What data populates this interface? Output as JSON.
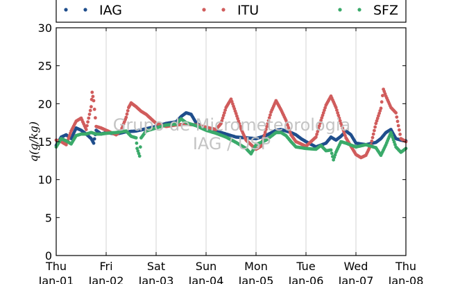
{
  "watermark": {
    "line1": "Grupo de Micrometeorologia",
    "line2": "IAG / USP"
  },
  "chart_data": {
    "type": "scatter",
    "ylabel": "q(g/kg)",
    "ylim": [
      0,
      30
    ],
    "yticks": [
      0,
      5,
      10,
      15,
      20,
      25,
      30
    ],
    "xlim": [
      0,
      7
    ],
    "x_unit": "days",
    "xticks": [
      {
        "x": 0,
        "day": "Thu",
        "date": "Jan-01"
      },
      {
        "x": 1,
        "day": "Fri",
        "date": "Jan-02"
      },
      {
        "x": 2,
        "day": "Sat",
        "date": "Jan-03"
      },
      {
        "x": 3,
        "day": "Sun",
        "date": "Jan-04"
      },
      {
        "x": 4,
        "day": "Mon",
        "date": "Jan-05"
      },
      {
        "x": 5,
        "day": "Tue",
        "date": "Jan-06"
      },
      {
        "x": 6,
        "day": "Wed",
        "date": "Jan-07"
      },
      {
        "x": 7,
        "day": "Thu",
        "date": "Jan-08"
      }
    ],
    "grid": "vertical",
    "legend_position": "top",
    "series": [
      {
        "name": "IAG",
        "color": "#1f4e8c",
        "points": [
          [
            0,
            14.5
          ],
          [
            0.1,
            15.6
          ],
          [
            0.2,
            15.9
          ],
          [
            0.3,
            15.4
          ],
          [
            0.4,
            16.8
          ],
          [
            0.5,
            16.5
          ],
          [
            0.6,
            16.0
          ],
          [
            0.7,
            15.4
          ],
          [
            0.75,
            14.8
          ],
          [
            0.8,
            16.5
          ],
          [
            0.9,
            16.0
          ],
          [
            1.0,
            16.2
          ],
          [
            1.2,
            16.0
          ],
          [
            1.4,
            16.3
          ],
          [
            1.6,
            16.4
          ],
          [
            1.8,
            16.7
          ],
          [
            2.0,
            17.0
          ],
          [
            2.2,
            17.4
          ],
          [
            2.4,
            17.6
          ],
          [
            2.5,
            18.3
          ],
          [
            2.6,
            18.8
          ],
          [
            2.7,
            18.6
          ],
          [
            2.8,
            17.5
          ],
          [
            2.9,
            17.0
          ],
          [
            3.0,
            16.6
          ],
          [
            3.2,
            16.4
          ],
          [
            3.4,
            16.0
          ],
          [
            3.6,
            15.6
          ],
          [
            3.8,
            15.5
          ],
          [
            4.0,
            15.4
          ],
          [
            4.2,
            15.8
          ],
          [
            4.4,
            16.5
          ],
          [
            4.5,
            16.6
          ],
          [
            4.6,
            16.4
          ],
          [
            4.7,
            16.2
          ],
          [
            4.8,
            15.9
          ],
          [
            4.9,
            15.4
          ],
          [
            5.0,
            15.0
          ],
          [
            5.2,
            14.3
          ],
          [
            5.4,
            14.8
          ],
          [
            5.5,
            15.6
          ],
          [
            5.6,
            15.2
          ],
          [
            5.7,
            15.7
          ],
          [
            5.8,
            16.4
          ],
          [
            5.9,
            15.9
          ],
          [
            6.0,
            14.8
          ],
          [
            6.2,
            14.6
          ],
          [
            6.4,
            14.9
          ],
          [
            6.5,
            15.4
          ],
          [
            6.6,
            16.2
          ],
          [
            6.7,
            16.6
          ],
          [
            6.8,
            15.4
          ],
          [
            6.9,
            15.2
          ],
          [
            7.0,
            15.1
          ]
        ]
      },
      {
        "name": "ITU",
        "color": "#d05c5c",
        "points": [
          [
            0,
            15.2
          ],
          [
            0.1,
            15.0
          ],
          [
            0.2,
            14.6
          ],
          [
            0.3,
            16.4
          ],
          [
            0.4,
            17.7
          ],
          [
            0.5,
            18.1
          ],
          [
            0.6,
            16.6
          ],
          [
            0.7,
            19.6
          ],
          [
            0.72,
            21.5
          ],
          [
            0.75,
            20.4
          ],
          [
            0.8,
            17.0
          ],
          [
            0.9,
            16.8
          ],
          [
            1.0,
            16.5
          ],
          [
            1.1,
            16.2
          ],
          [
            1.2,
            15.9
          ],
          [
            1.3,
            16.5
          ],
          [
            1.4,
            18.2
          ],
          [
            1.45,
            19.5
          ],
          [
            1.5,
            20.1
          ],
          [
            1.6,
            19.6
          ],
          [
            1.7,
            19.0
          ],
          [
            1.8,
            18.6
          ],
          [
            1.9,
            18.0
          ],
          [
            2.0,
            17.4
          ],
          [
            2.2,
            17.0
          ],
          [
            2.4,
            17.2
          ],
          [
            2.6,
            17.3
          ],
          [
            2.8,
            17.2
          ],
          [
            3.0,
            16.9
          ],
          [
            3.2,
            16.6
          ],
          [
            3.3,
            17.4
          ],
          [
            3.4,
            19.5
          ],
          [
            3.5,
            20.6
          ],
          [
            3.6,
            18.7
          ],
          [
            3.7,
            16.7
          ],
          [
            3.8,
            15.2
          ],
          [
            3.9,
            14.6
          ],
          [
            4.0,
            14.0
          ],
          [
            4.1,
            14.4
          ],
          [
            4.2,
            16.6
          ],
          [
            4.3,
            18.9
          ],
          [
            4.4,
            20.4
          ],
          [
            4.5,
            19.2
          ],
          [
            4.6,
            17.8
          ],
          [
            4.7,
            15.9
          ],
          [
            4.8,
            15.0
          ],
          [
            5.0,
            14.4
          ],
          [
            5.2,
            15.6
          ],
          [
            5.3,
            17.8
          ],
          [
            5.4,
            19.8
          ],
          [
            5.5,
            21.0
          ],
          [
            5.6,
            19.5
          ],
          [
            5.7,
            17.4
          ],
          [
            5.8,
            15.5
          ],
          [
            6.0,
            13.3
          ],
          [
            6.1,
            12.9
          ],
          [
            6.2,
            13.2
          ],
          [
            6.3,
            14.6
          ],
          [
            6.4,
            17.4
          ],
          [
            6.5,
            19.4
          ],
          [
            6.55,
            21.9
          ],
          [
            6.6,
            21.0
          ],
          [
            6.7,
            19.5
          ],
          [
            6.8,
            18.8
          ],
          [
            6.9,
            15.4
          ],
          [
            7.0,
            15.0
          ]
        ]
      },
      {
        "name": "SFZ",
        "color": "#3aaa6a",
        "points": [
          [
            0,
            14.3
          ],
          [
            0.1,
            15.4
          ],
          [
            0.2,
            15.1
          ],
          [
            0.3,
            14.7
          ],
          [
            0.4,
            15.8
          ],
          [
            0.5,
            16.0
          ],
          [
            0.6,
            16.0
          ],
          [
            0.7,
            16.2
          ],
          [
            0.8,
            16.0
          ],
          [
            0.9,
            16.0
          ],
          [
            1.0,
            16.1
          ],
          [
            1.2,
            16.2
          ],
          [
            1.4,
            16.4
          ],
          [
            1.5,
            15.7
          ],
          [
            1.6,
            15.5
          ],
          [
            1.62,
            14.1
          ],
          [
            1.67,
            13.1
          ],
          [
            1.7,
            15.5
          ],
          [
            1.8,
            16.4
          ],
          [
            2.0,
            16.8
          ],
          [
            2.2,
            17.2
          ],
          [
            2.4,
            17.3
          ],
          [
            2.5,
            18.0
          ],
          [
            2.6,
            17.5
          ],
          [
            2.8,
            17.1
          ],
          [
            3.0,
            16.5
          ],
          [
            3.2,
            16.1
          ],
          [
            3.4,
            15.6
          ],
          [
            3.6,
            14.9
          ],
          [
            3.8,
            14.1
          ],
          [
            3.9,
            13.4
          ],
          [
            4.0,
            14.6
          ],
          [
            4.2,
            15.2
          ],
          [
            4.4,
            16.2
          ],
          [
            4.5,
            16.2
          ],
          [
            4.6,
            15.8
          ],
          [
            4.7,
            15.0
          ],
          [
            4.8,
            14.3
          ],
          [
            5.0,
            14.1
          ],
          [
            5.2,
            14.0
          ],
          [
            5.3,
            14.5
          ],
          [
            5.4,
            13.8
          ],
          [
            5.5,
            13.9
          ],
          [
            5.55,
            12.6
          ],
          [
            5.6,
            13.6
          ],
          [
            5.7,
            15.0
          ],
          [
            5.8,
            14.8
          ],
          [
            6.0,
            14.3
          ],
          [
            6.2,
            14.6
          ],
          [
            6.4,
            14.2
          ],
          [
            6.5,
            13.2
          ],
          [
            6.6,
            14.6
          ],
          [
            6.7,
            16.2
          ],
          [
            6.8,
            14.3
          ],
          [
            6.9,
            13.6
          ],
          [
            7.0,
            14.1
          ]
        ]
      }
    ]
  }
}
